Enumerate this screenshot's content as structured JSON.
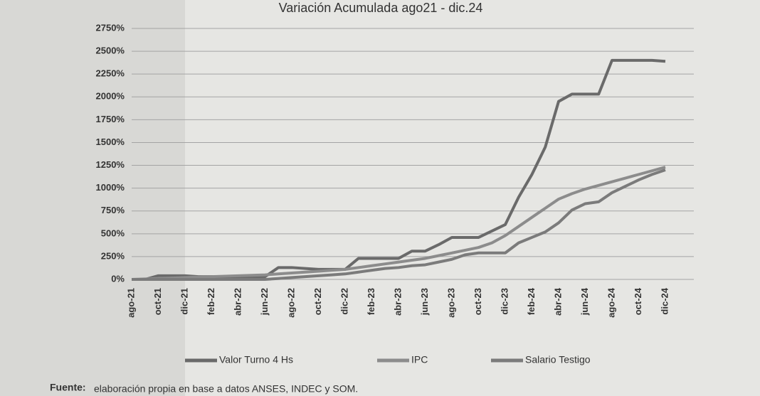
{
  "chart_data": {
    "type": "line",
    "title": "Variación Acumulada ago21 - dic.24",
    "categories": [
      "ago-21",
      null,
      "oct-21",
      null,
      "dic-21",
      null,
      "feb-22",
      null,
      "abr-22",
      null,
      "jun-22",
      null,
      "ago-22",
      null,
      "oct-22",
      null,
      "dic-22",
      null,
      "feb-23",
      null,
      "abr-23",
      null,
      "jun-23",
      null,
      "ago-23",
      null,
      "oct-23",
      null,
      "dic-23",
      null,
      "feb-24",
      null,
      "abr-24",
      null,
      "jun-24",
      null,
      "ago-24",
      null,
      "oct-24",
      null,
      "dic-24"
    ],
    "series": [
      {
        "name": "Valor Turno 4 Hs",
        "color": "#6a6a6a",
        "values": [
          0,
          0,
          40,
          40,
          40,
          30,
          30,
          20,
          20,
          20,
          30,
          130,
          130,
          120,
          110,
          110,
          110,
          230,
          230,
          230,
          230,
          310,
          310,
          380,
          460,
          460,
          460,
          530,
          600,
          900,
          1150,
          1450,
          1950,
          2030,
          2030,
          2030,
          2400,
          2400,
          2400,
          2400,
          2390
        ]
      },
      {
        "name": "IPC",
        "color": "#8c8c8c",
        "values": [
          0,
          5,
          10,
          15,
          20,
          25,
          30,
          35,
          40,
          45,
          50,
          60,
          70,
          80,
          90,
          100,
          110,
          130,
          150,
          170,
          190,
          210,
          230,
          260,
          290,
          320,
          350,
          400,
          480,
          580,
          680,
          780,
          880,
          940,
          990,
          1030,
          1070,
          1110,
          1150,
          1190,
          1230
        ]
      },
      {
        "name": "Salario Testigo",
        "color": "#7b7b7b",
        "values": [
          0,
          0,
          0,
          0,
          0,
          0,
          0,
          0,
          0,
          0,
          0,
          10,
          20,
          30,
          40,
          50,
          60,
          80,
          100,
          120,
          130,
          150,
          160,
          190,
          220,
          270,
          290,
          290,
          290,
          400,
          460,
          520,
          620,
          760,
          830,
          850,
          950,
          1020,
          1090,
          1150,
          1200
        ]
      }
    ],
    "ylim": [
      0,
      2750
    ],
    "yticks": [
      {
        "value": 0,
        "label": "0%"
      },
      {
        "value": 250,
        "label": "250%"
      },
      {
        "value": 500,
        "label": "500%"
      },
      {
        "value": 750,
        "label": "750%"
      },
      {
        "value": 1000,
        "label": "1000%"
      },
      {
        "value": 1250,
        "label": "1250%"
      },
      {
        "value": 1500,
        "label": "1500%"
      },
      {
        "value": 1750,
        "label": "1750%"
      },
      {
        "value": 2000,
        "label": "2000%"
      },
      {
        "value": 2250,
        "label": "2250%"
      },
      {
        "value": 2500,
        "label": "2500%"
      },
      {
        "value": 2750,
        "label": "2750%"
      }
    ],
    "grid": true,
    "legend": "bottom",
    "source_label": "Fuente:",
    "source_text": "elaboración propia en base a datos ANSES, INDEC y SOM."
  }
}
